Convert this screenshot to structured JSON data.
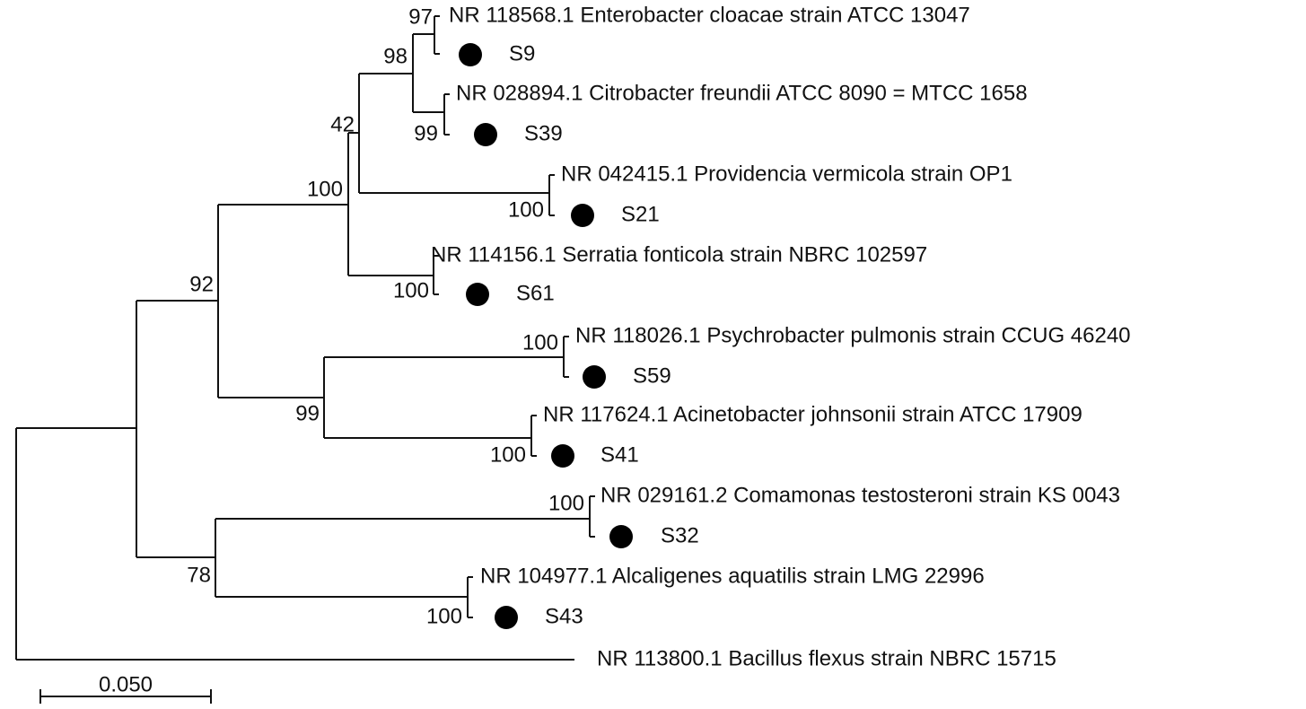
{
  "tree": {
    "leaves": [
      {
        "reference": "NR 118568.1 Enterobacter cloacae strain ATCC 13047",
        "sample": "S9",
        "bootstrap": 97
      },
      {
        "reference": "NR 028894.1 Citrobacter freundii ATCC 8090 = MTCC 1658",
        "sample": "S39",
        "bootstrap": 99
      },
      {
        "reference": "NR 042415.1 Providencia vermicola strain OP1",
        "sample": "S21",
        "bootstrap": 100
      },
      {
        "reference": "NR 114156.1 Serratia fonticola strain NBRC 102597",
        "sample": "S61",
        "bootstrap": 100
      },
      {
        "reference": "NR 118026.1 Psychrobacter pulmonis strain CCUG 46240",
        "sample": "S59",
        "bootstrap": 100
      },
      {
        "reference": "NR 117624.1 Acinetobacter johnsonii strain ATCC 17909",
        "sample": "S41",
        "bootstrap": 100
      },
      {
        "reference": "NR 029161.2 Comamonas testosteroni strain KS 0043",
        "sample": "S32",
        "bootstrap": 100
      },
      {
        "reference": "NR 104977.1 Alcaligenes aquatilis strain LMG 22996",
        "sample": "S43",
        "bootstrap": 100
      }
    ],
    "outgroup": "NR 113800.1 Bacillus flexus strain NBRC 15715",
    "internal_bootstraps": [
      98,
      42,
      100,
      92,
      99,
      78
    ],
    "scale_label": "0.050"
  }
}
